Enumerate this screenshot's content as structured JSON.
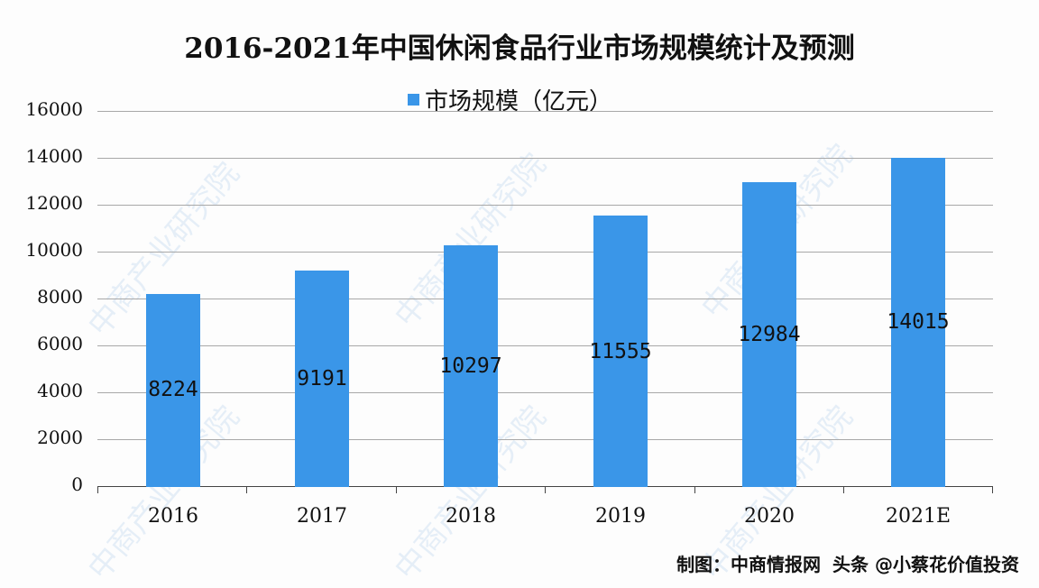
{
  "chart_data": {
    "type": "bar",
    "title": "2016-2021年中国休闲食品行业市场规模统计及预测",
    "categories": [
      "2016",
      "2017",
      "2018",
      "2019",
      "2020",
      "2021E"
    ],
    "series": [
      {
        "name": "市场规模（亿元）",
        "values": [
          8224,
          9191,
          10297,
          11555,
          12984,
          14015
        ],
        "color": "#3a96e8"
      }
    ],
    "xlabel": "",
    "ylabel": "",
    "ylim": [
      0,
      16000
    ],
    "yticks": [
      "0",
      "2000",
      "4000",
      "6000",
      "8000",
      "10000",
      "12000",
      "14000",
      "16000"
    ],
    "grid": true,
    "legend_position": "top"
  },
  "footer": {
    "source": "制图：中商情报网",
    "overlay": "头条 @小蔡花价值投资"
  },
  "watermark": "中商产业研究院"
}
